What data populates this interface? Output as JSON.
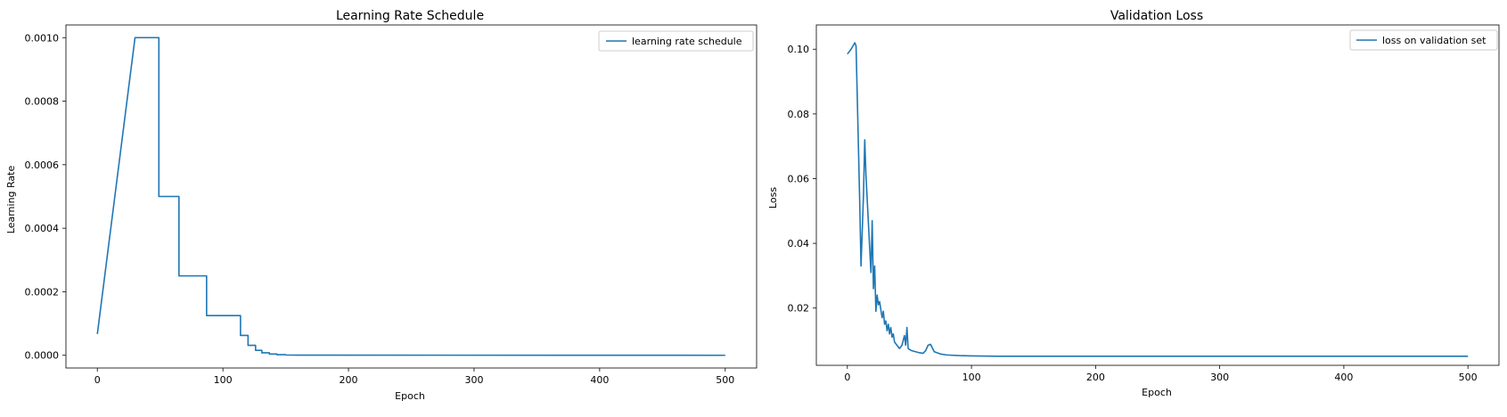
{
  "colors": {
    "series": "#1f77b4",
    "axis": "#000000",
    "legend_border": "#cccccc"
  },
  "chart_data": [
    {
      "type": "line",
      "title": "Learning Rate Schedule",
      "xlabel": "Epoch",
      "ylabel": "Learning Rate",
      "xlim": [
        -25,
        525
      ],
      "ylim": [
        -4e-05,
        0.00104
      ],
      "xticks": [
        0,
        100,
        200,
        300,
        400,
        500
      ],
      "yticks": [
        0.0,
        0.0002,
        0.0004,
        0.0006,
        0.0008,
        0.001
      ],
      "ytick_labels": [
        "0.0000",
        "0.0002",
        "0.0004",
        "0.0006",
        "0.0008",
        "0.0010"
      ],
      "legend": "top-right",
      "grid": false,
      "series": [
        {
          "name": "learning rate schedule",
          "x": [
            0,
            30,
            49,
            49,
            65,
            65,
            87,
            87,
            114,
            114,
            120,
            120,
            126,
            126,
            131,
            131,
            137,
            137,
            143,
            143,
            150,
            150,
            160,
            500
          ],
          "y": [
            6.7e-05,
            0.001,
            0.001,
            0.0005,
            0.0005,
            0.00025,
            0.00025,
            0.000125,
            0.000125,
            6.25e-05,
            6.25e-05,
            3.125e-05,
            3.125e-05,
            1.56e-05,
            1.56e-05,
            7.8e-06,
            7.8e-06,
            3.9e-06,
            3.9e-06,
            2e-06,
            2e-06,
            1e-06,
            5e-07,
            0.0
          ]
        }
      ]
    },
    {
      "type": "line",
      "title": "Validation Loss",
      "xlabel": "Epoch",
      "ylabel": "Loss",
      "xlim": [
        -25,
        525
      ],
      "ylim": [
        0.0023,
        0.1075
      ],
      "xticks": [
        0,
        100,
        200,
        300,
        400,
        500
      ],
      "yticks": [
        0.02,
        0.04,
        0.06,
        0.08,
        0.1
      ],
      "ytick_labels": [
        "0.02",
        "0.04",
        "0.06",
        "0.08",
        "0.10"
      ],
      "legend": "top-right",
      "grid": false,
      "series": [
        {
          "name": "loss on validation set",
          "x": [
            0,
            3,
            6,
            7,
            8,
            10,
            11,
            13,
            14,
            15,
            17,
            19,
            20,
            21,
            22,
            23,
            24,
            25,
            26,
            28,
            29,
            30,
            31,
            32,
            33,
            34,
            35,
            36,
            37,
            38,
            40,
            42,
            44,
            46,
            47,
            48,
            49,
            50,
            52,
            55,
            58,
            61,
            63,
            65,
            67,
            70,
            75,
            80,
            90,
            100,
            120,
            150,
            200,
            300,
            400,
            500
          ],
          "y": [
            0.0985,
            0.1,
            0.102,
            0.101,
            0.085,
            0.052,
            0.033,
            0.055,
            0.072,
            0.061,
            0.046,
            0.031,
            0.047,
            0.026,
            0.033,
            0.019,
            0.024,
            0.021,
            0.022,
            0.017,
            0.019,
            0.015,
            0.016,
            0.013,
            0.015,
            0.012,
            0.014,
            0.011,
            0.012,
            0.0095,
            0.0085,
            0.0075,
            0.0085,
            0.0115,
            0.0085,
            0.014,
            0.0075,
            0.0072,
            0.0068,
            0.0065,
            0.0062,
            0.006,
            0.0068,
            0.0085,
            0.0088,
            0.0065,
            0.0058,
            0.0055,
            0.0053,
            0.0052,
            0.0051,
            0.0051,
            0.0051,
            0.0051,
            0.0051,
            0.0051
          ]
        }
      ]
    }
  ]
}
